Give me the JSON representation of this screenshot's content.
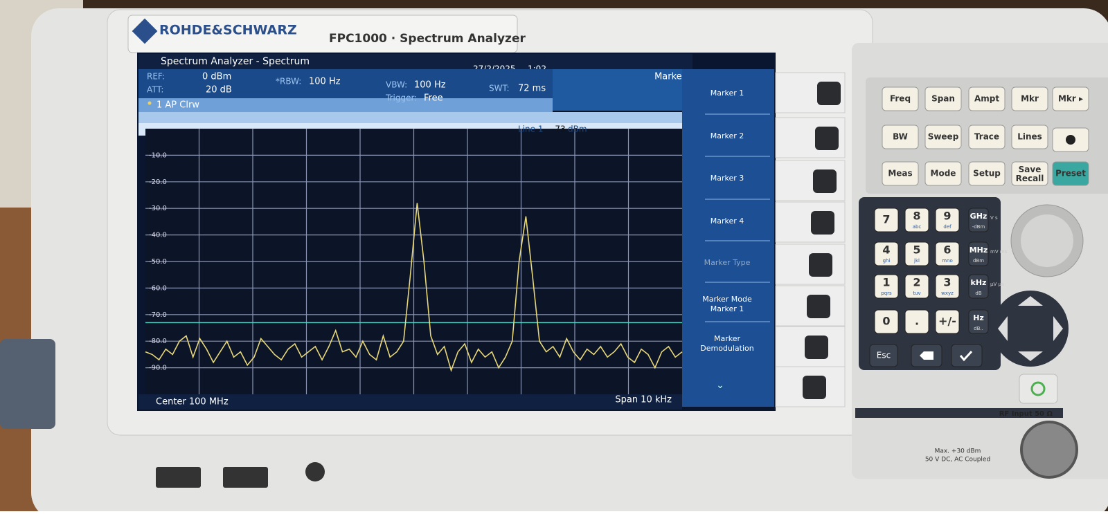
{
  "header": {
    "brand": "ROHDE&SCHWARZ",
    "model": "FPC1000 · Spectrum Analyzer"
  },
  "screen": {
    "title": "Spectrum Analyzer - Spectrum",
    "date": "27/2/2025",
    "time": "1:02",
    "settings": [
      {
        "label": "REF:",
        "value": "0 dBm"
      },
      {
        "label": "ATT:",
        "value": "20 dB"
      },
      {
        "label": "*RBW:",
        "value": "100 Hz"
      },
      {
        "label": "VBW:",
        "value": "100 Hz"
      },
      {
        "label": "Trigger:",
        "value": "Free"
      },
      {
        "label": "SWT:",
        "value": "72 ms"
      }
    ],
    "panel_title": "Marker",
    "trace_info": "1 AP Clrw",
    "center": "Center 100 MHz",
    "span": "Span 10 kHz",
    "softkeys": [
      "Marker 1",
      "Marker 2",
      "Marker 3",
      "Marker 4",
      "Marker Type",
      "Marker Mode Marker 1",
      "Marker Demodulation"
    ]
  },
  "chart_data": {
    "type": "line",
    "color": "#e8d878",
    "ylim": [
      -100,
      0
    ],
    "yticks": [
      {
        "value": -10,
        "label": "-10.0"
      },
      {
        "value": -20,
        "label": "-20.0"
      },
      {
        "value": -30,
        "label": "-30.0"
      },
      {
        "value": -40,
        "label": "-40.0"
      },
      {
        "value": -50,
        "label": "-50.0"
      },
      {
        "value": -60,
        "label": "-60.0"
      },
      {
        "value": -70,
        "label": "-70.0"
      },
      {
        "value": -80,
        "label": "-80.0"
      },
      {
        "value": -90,
        "label": "-90.0"
      }
    ],
    "grid": true,
    "display_line": {
      "name": "Line 1",
      "value": -73,
      "unit": "dBm",
      "color": "#4fd1c5"
    },
    "values": [
      -84,
      -85,
      -87,
      -83,
      -85,
      -80,
      -78,
      -86,
      -79,
      -83,
      -88,
      -84,
      -80,
      -86,
      -84,
      -89,
      -86,
      -79,
      -82,
      -85,
      -87,
      -83,
      -81,
      -86,
      -84,
      -82,
      -87,
      -82,
      -76,
      -84,
      -83,
      -86,
      -80,
      -85,
      -87,
      -78,
      -86,
      -84,
      -80,
      -55,
      -28,
      -50,
      -78,
      -85,
      -82,
      -91,
      -84,
      -81,
      -88,
      -83,
      -86,
      -84,
      -90,
      -86,
      -80,
      -50,
      -33,
      -56,
      -80,
      -84,
      -82,
      -86,
      -79,
      -84,
      -87,
      -83,
      -85,
      -82,
      -86,
      -84,
      -81,
      -86,
      -88,
      -83,
      -85,
      -90,
      -84,
      -82,
      -86,
      -84
    ]
  },
  "keys": {
    "function": [
      "Freq",
      "Span",
      "Ampt",
      "Mkr",
      "Mkr ▸",
      "BW",
      "Sweep",
      "Trace",
      "Lines",
      "Meas",
      "Mode",
      "Setup",
      "Save Recall",
      "Preset"
    ],
    "keypad": [
      {
        "label": "7"
      },
      {
        "label": "8",
        "sub": "abc"
      },
      {
        "label": "9",
        "sub": "def"
      },
      {
        "label": "GHz",
        "sub": "-dBm",
        "side": "V s"
      },
      {
        "label": "4",
        "sub": "ghi"
      },
      {
        "label": "5",
        "sub": "jkl"
      },
      {
        "label": "6",
        "sub": "mno"
      },
      {
        "label": "MHz",
        "sub": "dBm",
        "side": "mV ms"
      },
      {
        "label": "1",
        "sub": "pqrs"
      },
      {
        "label": "2",
        "sub": "tuv"
      },
      {
        "label": "3",
        "sub": "wxyz"
      },
      {
        "label": "kHz",
        "sub": "dB",
        "side": "μV μs"
      },
      {
        "label": "0"
      },
      {
        "label": "."
      },
      {
        "label": "+/-"
      },
      {
        "label": "Hz",
        "sub": "dB.."
      }
    ],
    "esc": "Esc"
  },
  "rear": {
    "rf_input": "RF Input 50 Ω",
    "warning_1": "Max. +30 dBm",
    "warning_2": "50 V DC, AC Coupled"
  }
}
